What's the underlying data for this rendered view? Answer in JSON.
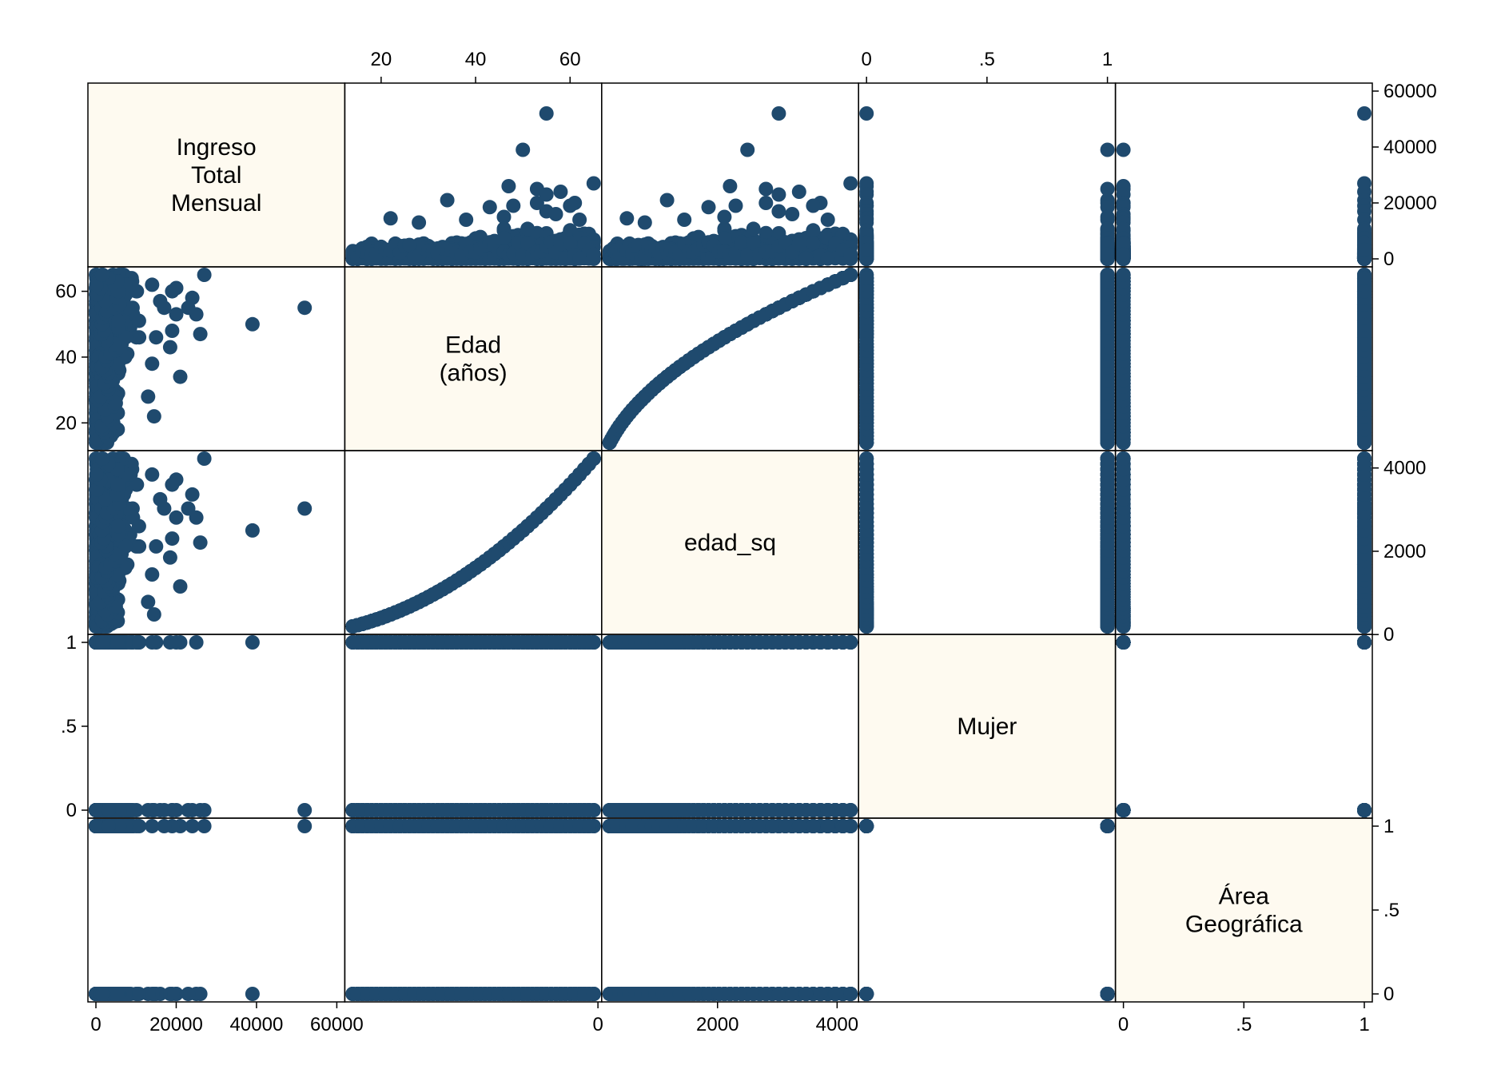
{
  "chart_data": {
    "type": "scatter",
    "subtype": "scatter-matrix",
    "marker_color": "#1f4a6e",
    "diagonal_fill": "#fefaf0",
    "variables": [
      {
        "key": "ingreso",
        "label": [
          "Ingreso",
          "Total",
          "Mensual"
        ],
        "range": [
          0,
          60000
        ],
        "ticks": [
          0,
          20000,
          40000,
          60000
        ],
        "tick_labels": [
          "0",
          "20000",
          "40000",
          "60000"
        ]
      },
      {
        "key": "edad",
        "label": [
          "Edad",
          "(años)"
        ],
        "range": [
          14,
          65
        ],
        "ticks": [
          20,
          40,
          60
        ],
        "tick_labels": [
          "20",
          "40",
          "60"
        ]
      },
      {
        "key": "edad_sq",
        "label": [
          "edad_sq"
        ],
        "range": [
          196,
          4225
        ],
        "ticks": [
          0,
          2000,
          4000
        ],
        "tick_labels": [
          "0",
          "2000",
          "4000"
        ]
      },
      {
        "key": "mujer",
        "label": [
          "Mujer"
        ],
        "range": [
          0,
          1
        ],
        "ticks": [
          0,
          0.5,
          1
        ],
        "tick_labels": [
          "0",
          ".5",
          "1"
        ]
      },
      {
        "key": "area",
        "label": [
          "Área",
          "Geográfica"
        ],
        "range": [
          0,
          1
        ],
        "ticks": [
          0,
          0.5,
          1
        ],
        "tick_labels": [
          "0",
          ".5",
          "1"
        ]
      }
    ],
    "axis_placement": {
      "top": [
        "edad",
        "mujer"
      ],
      "bottom": [
        "ingreso",
        "edad_sq",
        "area"
      ],
      "left": [
        "edad",
        "mujer"
      ],
      "right": [
        "ingreso",
        "edad_sq",
        "area"
      ]
    },
    "observations": {
      "columns": [
        "ingreso",
        "edad",
        "mujer",
        "area"
      ],
      "notable": [
        [
          52000,
          55,
          0,
          1
        ],
        [
          39000,
          50,
          1,
          0
        ],
        [
          27000,
          65,
          0,
          1
        ],
        [
          26000,
          47,
          0,
          0
        ],
        [
          25000,
          53,
          1,
          0
        ],
        [
          24000,
          58,
          0,
          1
        ],
        [
          23000,
          55,
          0,
          0
        ],
        [
          21000,
          34,
          1,
          1
        ],
        [
          20000,
          61,
          0,
          0
        ],
        [
          20000,
          53,
          1,
          0
        ],
        [
          19000,
          60,
          0,
          1
        ],
        [
          19000,
          48,
          0,
          0
        ],
        [
          18500,
          43,
          1,
          0
        ],
        [
          17000,
          55,
          0,
          1
        ],
        [
          16000,
          57,
          0,
          0
        ],
        [
          15000,
          46,
          1,
          0
        ],
        [
          14500,
          22,
          0,
          0
        ],
        [
          14000,
          62,
          0,
          1
        ],
        [
          14000,
          38,
          1,
          0
        ],
        [
          13000,
          28,
          0,
          0
        ]
      ],
      "bulk_note_min_income": 0,
      "age_min": 14,
      "age_max": 65
    }
  }
}
